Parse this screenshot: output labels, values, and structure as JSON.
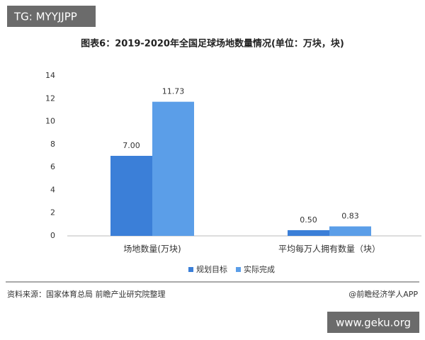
{
  "chart_data": {
    "type": "bar",
    "title": "图表6：2019-2020年全国足球场地数量情况(单位：万块，块)",
    "categories": [
      "场地数量(万块)",
      "平均每万人拥有数量（块）"
    ],
    "series": [
      {
        "name": "规划目标",
        "color": "#3b7fd8",
        "values": [
          7.0,
          0.5
        ],
        "value_labels": [
          "7.00",
          "0.50"
        ]
      },
      {
        "name": "实际完成",
        "color": "#5b9ee8",
        "values": [
          11.73,
          0.83
        ],
        "value_labels": [
          "11.73",
          "0.83"
        ]
      }
    ],
    "ylim": [
      0,
      14
    ],
    "yticks": [
      0,
      2,
      4,
      6,
      8,
      10,
      12,
      14
    ],
    "grid": false,
    "legend": "bottom",
    "source": "资料来源：国家体育总局 前瞻产业研究院整理",
    "credit": "@前瞻经济学人APP"
  },
  "overlays": [
    "TG: MYYJJPP",
    "www.geku.org"
  ]
}
